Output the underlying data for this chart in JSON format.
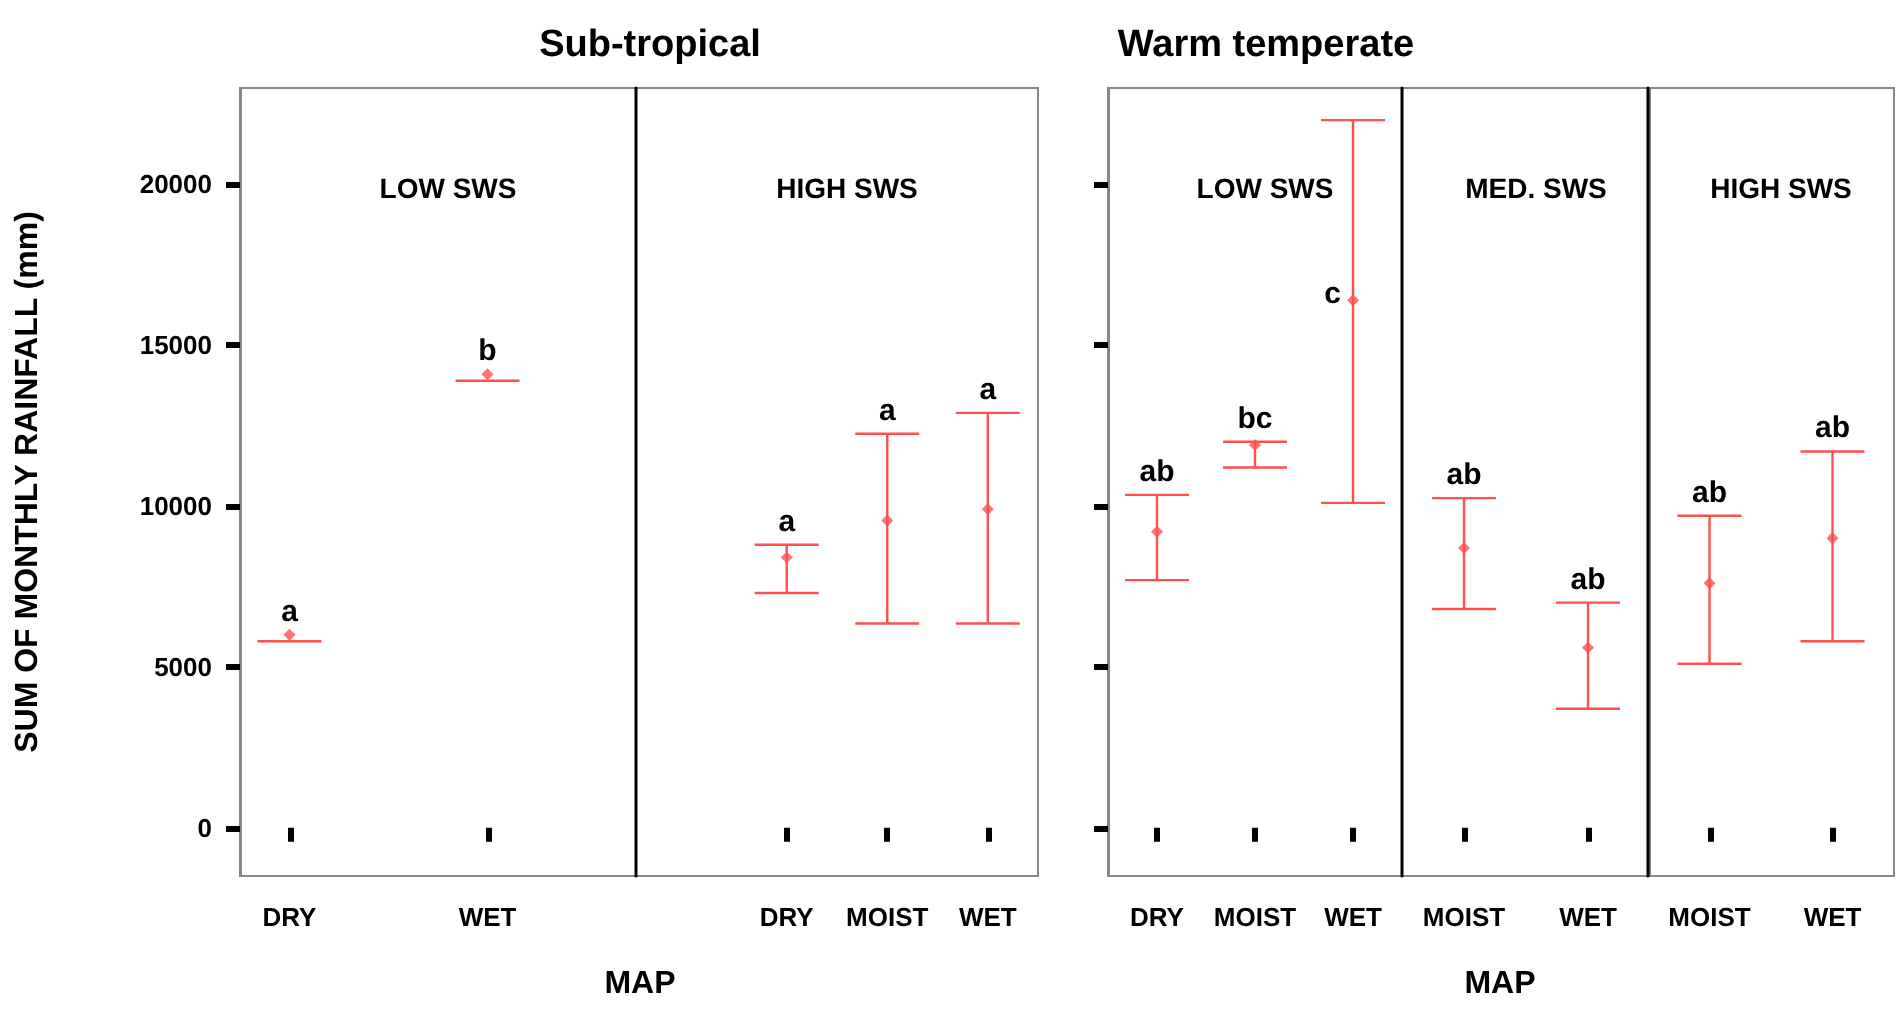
{
  "chart_data": [
    {
      "type": "scatter",
      "title": "Sub-tropical",
      "subtitle": "LOW SWS",
      "xlabel": "MAP",
      "ylabel": "SUM OF MONTHLY RAINFALL (mm)",
      "color": "#ff5050",
      "marker": "diamond",
      "categories": [
        "DRY",
        null,
        "WET",
        null
      ],
      "ylim": [
        -1500,
        23000
      ],
      "yticks": [
        0,
        5000,
        10000,
        15000,
        20000
      ],
      "values": [
        6000,
        null,
        14100,
        null
      ],
      "errors": [
        [
          5800,
          5800
        ],
        null,
        [
          13900,
          13900
        ],
        null
      ],
      "annotations": [
        {
          "text": "a",
          "x": "DRY",
          "y": 6000
        },
        {
          "text": "b",
          "x": "WET",
          "y": 14100
        }
      ]
    },
    {
      "type": "scatter",
      "subtitle": "HIGH SWS",
      "color": "#ff5050",
      "marker": "diamond",
      "tick_labels": "x",
      "categories": [
        null,
        "DRY",
        "MOIST",
        "WET"
      ],
      "ylim": [
        -1500,
        23000
      ],
      "values": [
        null,
        8400,
        9550,
        9900
      ],
      "errors": [
        null,
        [
          7300,
          8800
        ],
        [
          6350,
          12250
        ],
        [
          6350,
          12900
        ]
      ],
      "annotations": [
        {
          "text": "a",
          "x": "DRY",
          "y": 8800
        },
        {
          "text": "a",
          "x": "MOIST",
          "y": 12250
        },
        {
          "text": "a",
          "x": "WET",
          "y": 12900
        }
      ]
    },
    {
      "type": "scatter",
      "title": "Warm temperate",
      "subtitle": "LOW SWS",
      "xlabel": "MAP",
      "color": "#ff5050",
      "marker": "diamond",
      "tick_labels": "x",
      "categories": [
        "DRY",
        "MOIST",
        "WET"
      ],
      "ylim": [
        -1500,
        23000
      ],
      "yticks": [
        0,
        5000,
        10000,
        15000,
        20000
      ],
      "values": [
        9200,
        11900,
        16400
      ],
      "errors": [
        [
          7700,
          10350
        ],
        [
          11200,
          12000
        ],
        [
          10100,
          22000
        ]
      ],
      "annotations": [
        {
          "text": "ab",
          "x": "DRY",
          "y": 10350
        },
        {
          "text": "bc",
          "x": "MOIST",
          "y": 12000
        },
        {
          "text": "c",
          "x": "WET",
          "y": 16400
        }
      ]
    },
    {
      "type": "scatter",
      "subtitle": "MED. SWS",
      "color": "#ff5050",
      "marker": "diamond",
      "tick_labels": "x",
      "categories": [
        "MOIST",
        "WET"
      ],
      "ylim": [
        -1500,
        23000
      ],
      "values": [
        8700,
        5600
      ],
      "errors": [
        [
          6800,
          10250
        ],
        [
          3700,
          7000
        ]
      ],
      "annotations": [
        {
          "text": "ab",
          "x": "MOIST",
          "y": 10250
        },
        {
          "text": "ab",
          "x": "WET",
          "y": 7000
        }
      ]
    },
    {
      "type": "scatter",
      "subtitle": "HIGH SWS",
      "color": "#ff5050",
      "marker": "diamond",
      "tick_labels": "x",
      "categories": [
        "MOIST",
        "WET"
      ],
      "ylim": [
        -1500,
        23000
      ],
      "values": [
        7600,
        9000
      ],
      "errors": [
        [
          5100,
          9700
        ],
        [
          5800,
          11700
        ]
      ],
      "annotations": [
        {
          "text": "ab",
          "x": "MOIST",
          "y": 9700
        },
        {
          "text": "ab",
          "x": "WET",
          "y": 11700
        }
      ]
    }
  ]
}
